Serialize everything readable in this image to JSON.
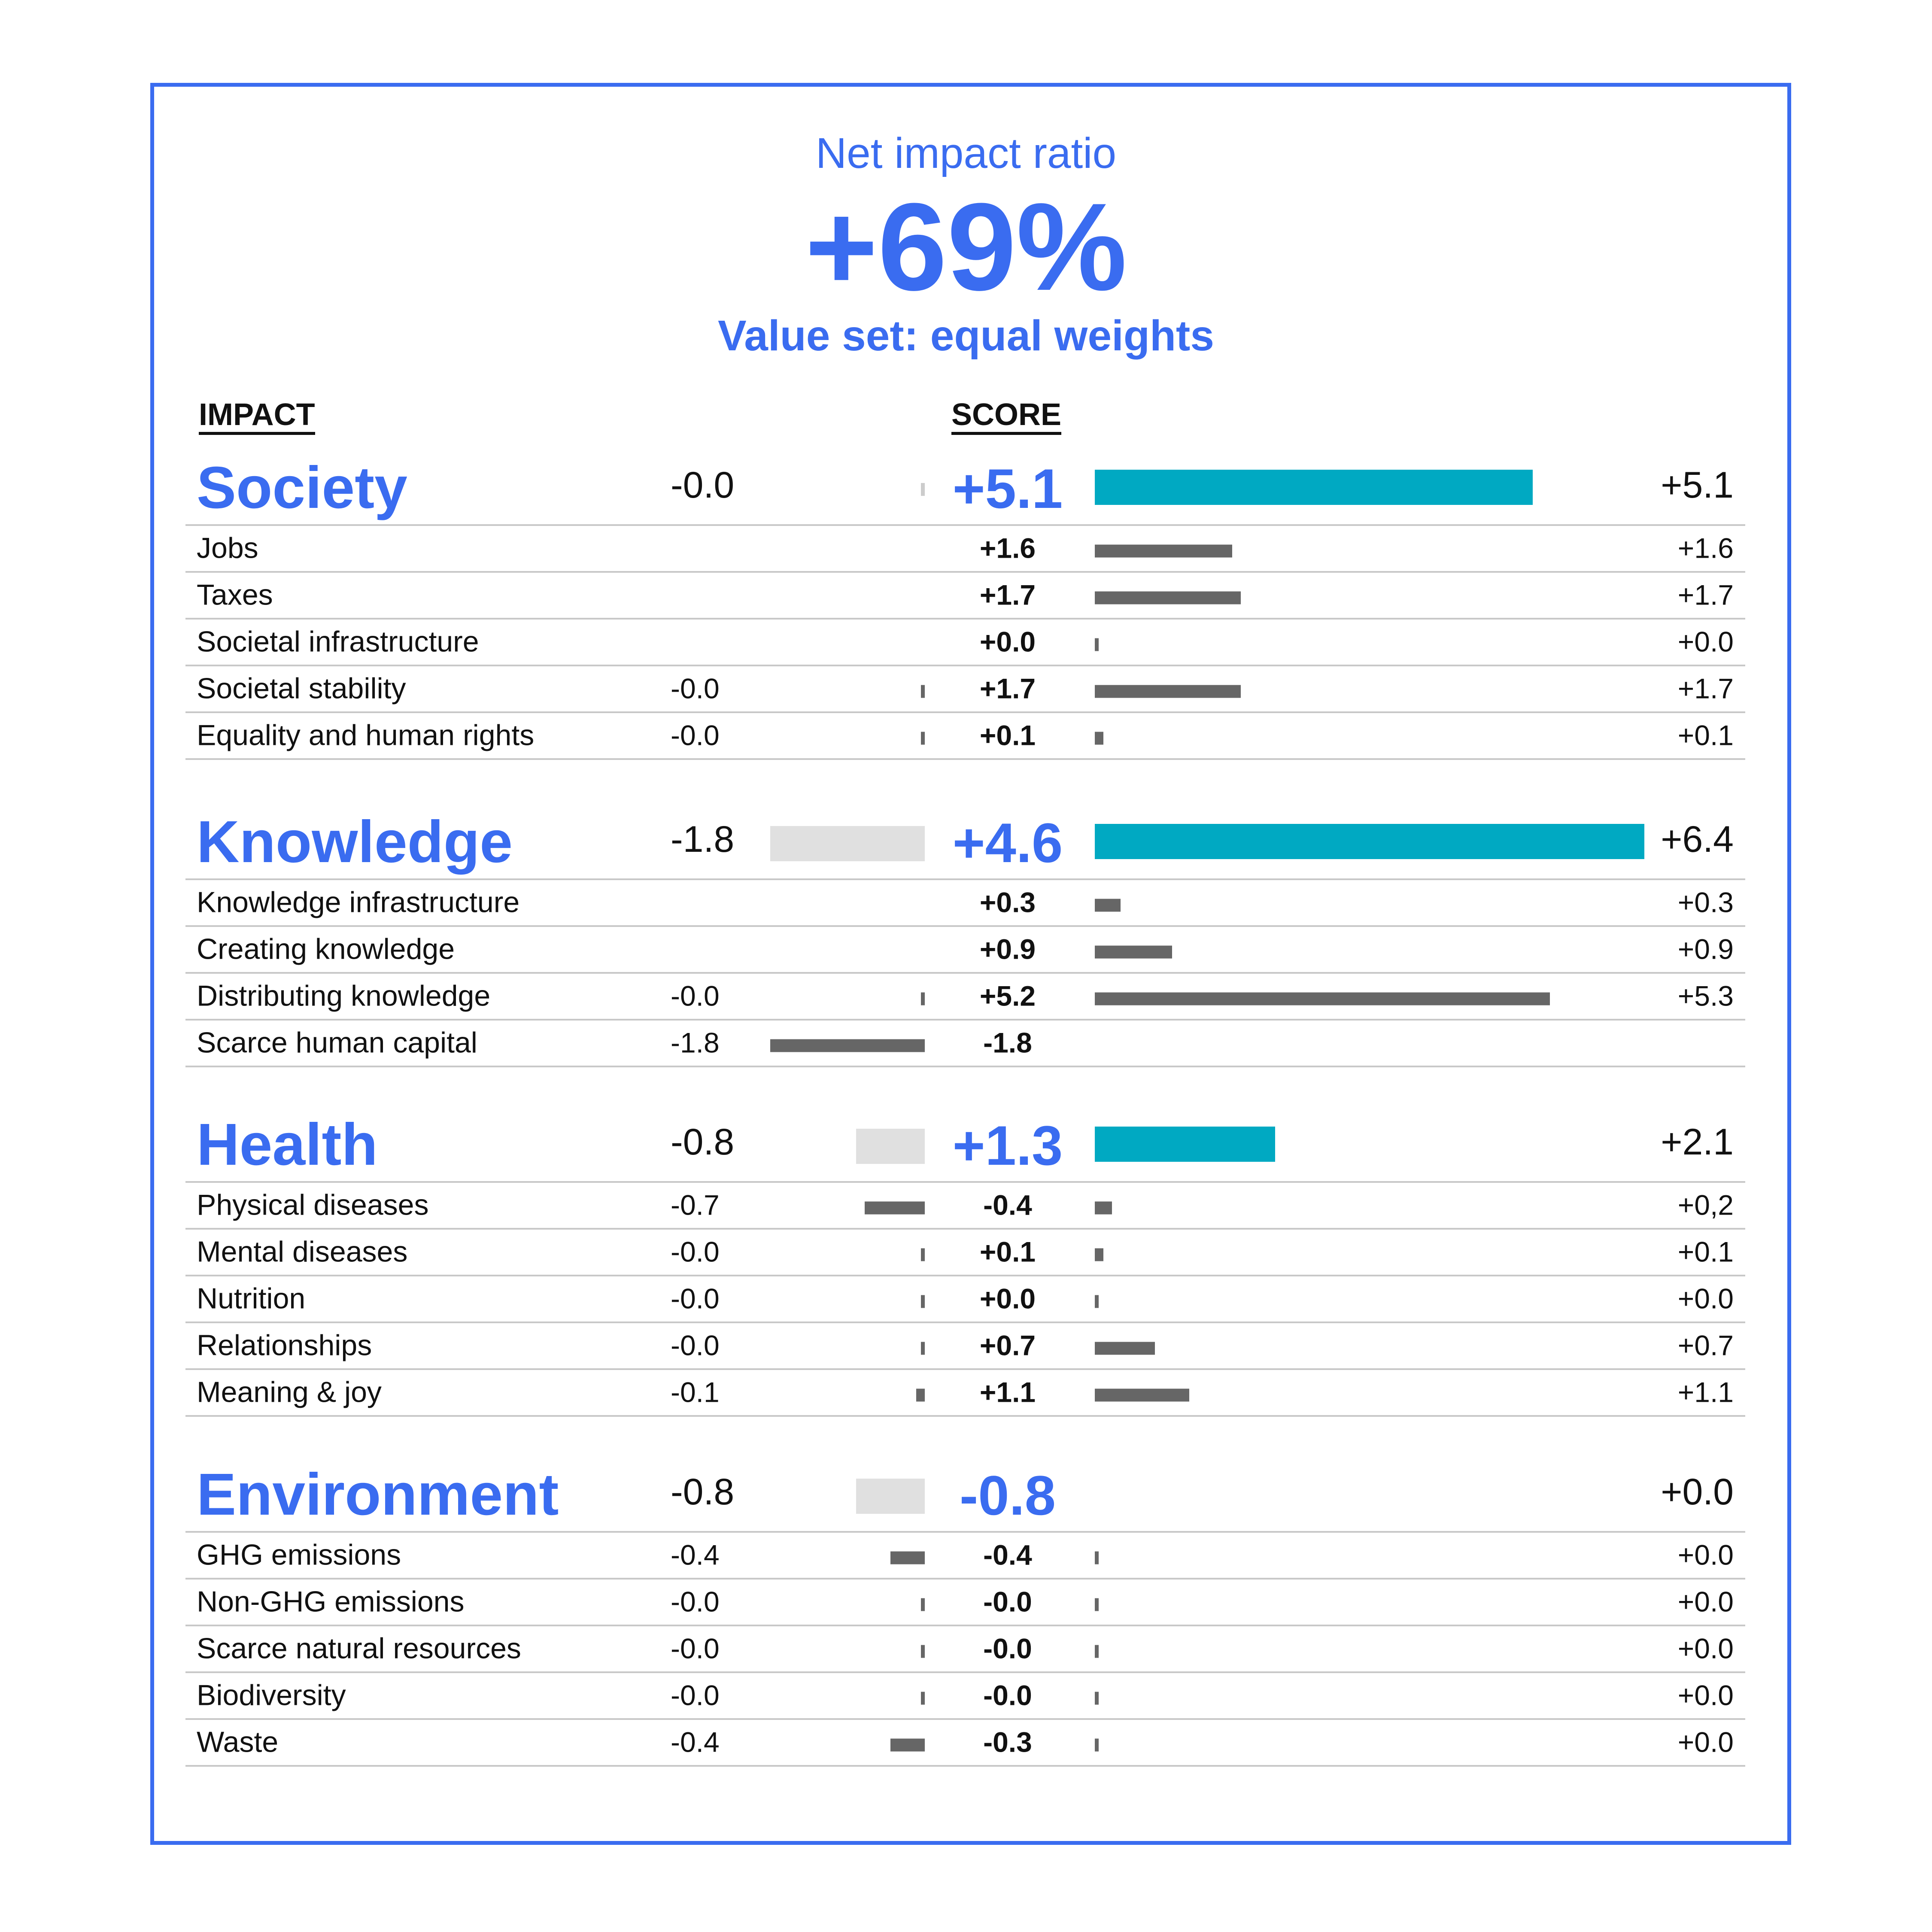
{
  "header": {
    "title": "Net impact ratio",
    "ratio": "+69%",
    "value_set": "Value set: equal weights"
  },
  "columns": {
    "impact": "IMPACT",
    "score": "SCORE"
  },
  "colors": {
    "accent": "#3a6cf0",
    "category_positive_bar": "#00a9c2",
    "category_negative_bar": "#e0e0e0",
    "sub_bar": "#666666",
    "divider": "#c8c8c8"
  },
  "chart_data": {
    "type": "bar",
    "groups": [
      {
        "name": "Society",
        "negative": {
          "value": -0.0,
          "label": "-0.0"
        },
        "score": {
          "value": 5.1,
          "label": "+5.1"
        },
        "positive": {
          "value": 5.1,
          "label": "+5.1"
        },
        "items": [
          {
            "name": "Jobs",
            "negative": null,
            "score": {
              "value": 1.6,
              "label": "+1.6"
            },
            "positive": {
              "value": 1.6,
              "label": "+1.6"
            }
          },
          {
            "name": "Taxes",
            "negative": null,
            "score": {
              "value": 1.7,
              "label": "+1.7"
            },
            "positive": {
              "value": 1.7,
              "label": "+1.7"
            }
          },
          {
            "name": "Societal infrastructure",
            "negative": null,
            "score": {
              "value": 0.0,
              "label": "+0.0"
            },
            "positive": {
              "value": 0.0,
              "label": "+0.0"
            }
          },
          {
            "name": "Societal stability",
            "negative": {
              "value": -0.0,
              "label": "-0.0"
            },
            "score": {
              "value": 1.7,
              "label": "+1.7"
            },
            "positive": {
              "value": 1.7,
              "label": "+1.7"
            }
          },
          {
            "name": "Equality and human rights",
            "negative": {
              "value": -0.0,
              "label": "-0.0"
            },
            "score": {
              "value": 0.1,
              "label": "+0.1"
            },
            "positive": {
              "value": 0.1,
              "label": "+0.1"
            }
          }
        ]
      },
      {
        "name": "Knowledge",
        "negative": {
          "value": -1.8,
          "label": "-1.8"
        },
        "score": {
          "value": 4.6,
          "label": "+4.6"
        },
        "positive": {
          "value": 6.4,
          "label": "+6.4"
        },
        "items": [
          {
            "name": "Knowledge infrastructure",
            "negative": null,
            "score": {
              "value": 0.3,
              "label": "+0.3"
            },
            "positive": {
              "value": 0.3,
              "label": "+0.3"
            }
          },
          {
            "name": "Creating knowledge",
            "negative": null,
            "score": {
              "value": 0.9,
              "label": "+0.9"
            },
            "positive": {
              "value": 0.9,
              "label": "+0.9"
            }
          },
          {
            "name": "Distributing knowledge",
            "negative": {
              "value": -0.0,
              "label": "-0.0"
            },
            "score": {
              "value": 5.2,
              "label": "+5.2"
            },
            "positive": {
              "value": 5.3,
              "label": "+5.3"
            }
          },
          {
            "name": "Scarce human capital",
            "negative": {
              "value": -1.8,
              "label": "-1.8"
            },
            "score": {
              "value": -1.8,
              "label": "-1.8"
            },
            "positive": null
          }
        ]
      },
      {
        "name": "Health",
        "negative": {
          "value": -0.8,
          "label": "-0.8"
        },
        "score": {
          "value": 1.3,
          "label": "+1.3"
        },
        "positive": {
          "value": 2.1,
          "label": "+2.1"
        },
        "items": [
          {
            "name": "Physical diseases",
            "negative": {
              "value": -0.7,
              "label": "-0.7"
            },
            "score": {
              "value": -0.4,
              "label": "-0.4"
            },
            "positive": {
              "value": 0.2,
              "label": "+0,2"
            }
          },
          {
            "name": "Mental diseases",
            "negative": {
              "value": -0.0,
              "label": "-0.0"
            },
            "score": {
              "value": 0.1,
              "label": "+0.1"
            },
            "positive": {
              "value": 0.1,
              "label": "+0.1"
            }
          },
          {
            "name": "Nutrition",
            "negative": {
              "value": -0.0,
              "label": "-0.0"
            },
            "score": {
              "value": 0.0,
              "label": "+0.0"
            },
            "positive": {
              "value": 0.0,
              "label": "+0.0"
            }
          },
          {
            "name": "Relationships",
            "negative": {
              "value": -0.0,
              "label": "-0.0"
            },
            "score": {
              "value": 0.7,
              "label": "+0.7"
            },
            "positive": {
              "value": 0.7,
              "label": "+0.7"
            }
          },
          {
            "name": "Meaning & joy",
            "negative": {
              "value": -0.1,
              "label": "-0.1"
            },
            "score": {
              "value": 1.1,
              "label": "+1.1"
            },
            "positive": {
              "value": 1.1,
              "label": "+1.1"
            }
          }
        ]
      },
      {
        "name": "Environment",
        "negative": {
          "value": -0.8,
          "label": "-0.8"
        },
        "score": {
          "value": -0.8,
          "label": "-0.8"
        },
        "positive": {
          "value": 0.0,
          "label": "+0.0",
          "bar": false
        },
        "items": [
          {
            "name": "GHG emissions",
            "negative": {
              "value": -0.4,
              "label": "-0.4"
            },
            "score": {
              "value": -0.4,
              "label": "-0.4"
            },
            "positive": {
              "value": 0.0,
              "label": "+0.0"
            }
          },
          {
            "name": "Non-GHG emissions",
            "negative": {
              "value": -0.0,
              "label": "-0.0"
            },
            "score": {
              "value": -0.0,
              "label": "-0.0"
            },
            "positive": {
              "value": 0.0,
              "label": "+0.0"
            }
          },
          {
            "name": "Scarce natural resources",
            "negative": {
              "value": -0.0,
              "label": "-0.0"
            },
            "score": {
              "value": -0.0,
              "label": "-0.0"
            },
            "positive": {
              "value": 0.0,
              "label": "+0.0"
            }
          },
          {
            "name": "Biodiversity",
            "negative": {
              "value": -0.0,
              "label": "-0.0"
            },
            "score": {
              "value": -0.0,
              "label": "-0.0"
            },
            "positive": {
              "value": 0.0,
              "label": "+0.0"
            }
          },
          {
            "name": "Waste",
            "negative": {
              "value": -0.4,
              "label": "-0.4"
            },
            "score": {
              "value": -0.3,
              "label": "-0.3"
            },
            "positive": {
              "value": 0.0,
              "label": "+0.0"
            }
          }
        ]
      }
    ]
  }
}
